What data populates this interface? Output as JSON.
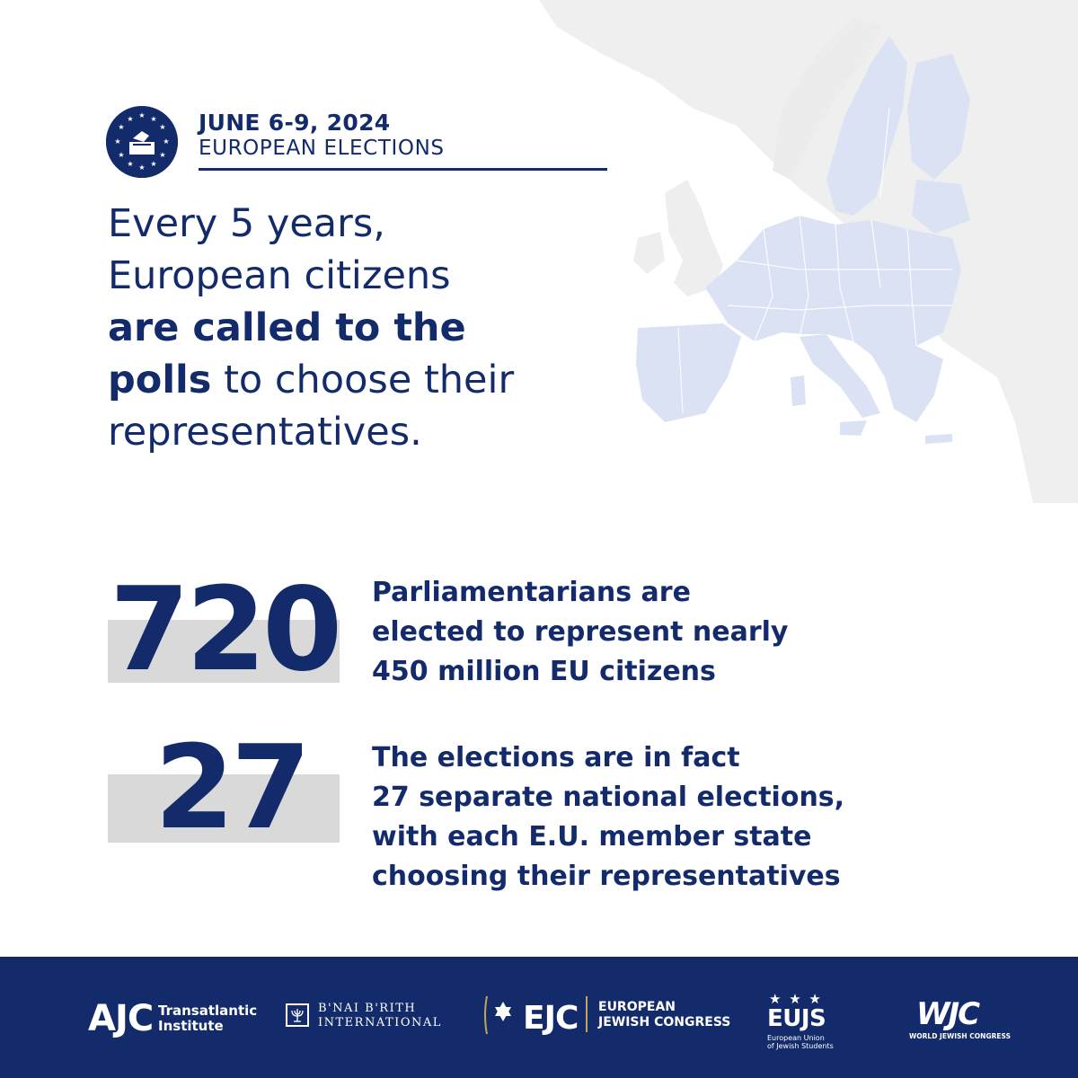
{
  "header": {
    "date": "JUNE 6-9, 2024",
    "subtitle": "EUROPEAN ELECTIONS"
  },
  "intro": {
    "line1": "Every 5 years,",
    "line2": "European citizens",
    "bold1": "are called to the",
    "bold2": "polls",
    "line4_rest": " to choose their",
    "line5": "representatives."
  },
  "stats": [
    {
      "number": "720",
      "lines": [
        "Parliamentarians are",
        "elected to represent nearly",
        "450 million EU citizens"
      ]
    },
    {
      "number": "27",
      "lines": [
        "The elections are in fact",
        "27 separate national elections,",
        "with each E.U. member state",
        "choosing their representatives"
      ]
    }
  ],
  "footer": {
    "ajc": {
      "big": "AJC",
      "line1": "Transatlantic",
      "line2": "Institute"
    },
    "bnai_brith": {
      "line1": "B'NAI B'RITH",
      "line2": "INTERNATIONAL"
    },
    "ejc": {
      "big": "EJC",
      "line1": "EUROPEAN",
      "line2": "JEWISH CONGRESS"
    },
    "eujs": {
      "big": "EUJS",
      "line1": "European Union",
      "line2": "of Jewish Students"
    },
    "wjc": {
      "big": "WJC",
      "small": "WORLD JEWISH CONGRESS"
    }
  },
  "colors": {
    "navy": "#132b6b",
    "map_eu": "#dbe2f3",
    "map_other": "#efefef",
    "bar_gray": "#d9d9d9"
  }
}
